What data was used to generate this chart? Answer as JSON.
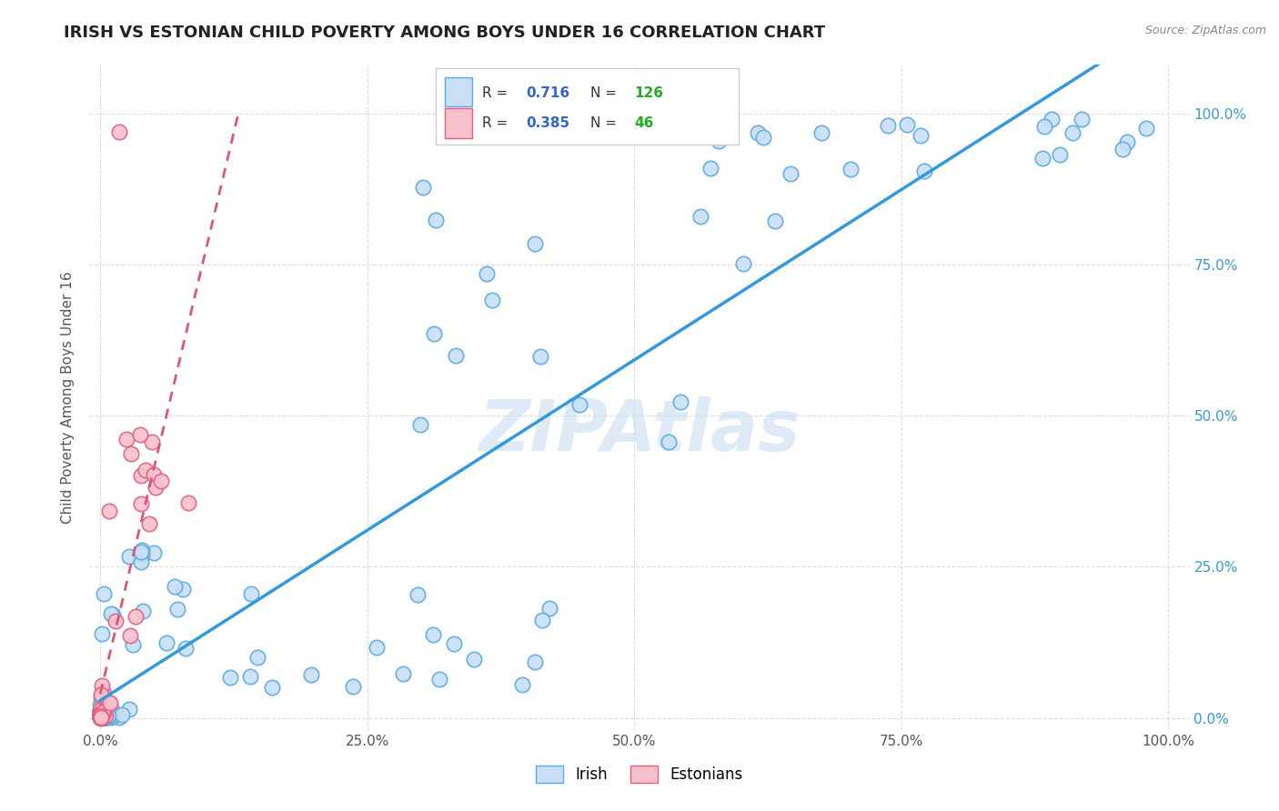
{
  "title": "IRISH VS ESTONIAN CHILD POVERTY AMONG BOYS UNDER 16 CORRELATION CHART",
  "source": "Source: ZipAtlas.com",
  "ylabel": "Child Poverty Among Boys Under 16",
  "irish_R": 0.716,
  "irish_N": 126,
  "estonian_R": 0.385,
  "estonian_N": 46,
  "irish_fill": "#c8dff5",
  "irish_edge": "#5aaae0",
  "estonian_fill": "#f8c0cc",
  "estonian_edge": "#e06080",
  "irish_line_color": "#3399dd",
  "estonian_line_color": "#e05575",
  "watermark": "ZIPAtlas",
  "watermark_color": "#c8ddf0",
  "background_color": "#ffffff",
  "grid_color": "#dddddd",
  "title_color": "#222222",
  "axis_label_color": "#555555",
  "tick_label_color": "#555555",
  "legend_r_color": "#3366cc",
  "legend_n_color": "#22aa22",
  "legend_border_color": "#cccccc",
  "source_color": "#888888"
}
